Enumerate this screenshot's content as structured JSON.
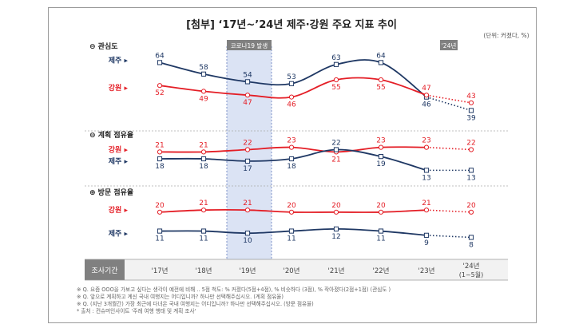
{
  "title": "[첨부] ‘17년~’24년 제주·강원 주요 지표 추이",
  "unit_note": "(단위: 커졌다, %)",
  "covid_label": "코로나19 발생",
  "future_badge": "'24년",
  "survey_label": "조사기간",
  "years": [
    "'17년",
    "'18년",
    "'19년",
    "'20년",
    "'21년",
    "'22년",
    "'23년",
    "'24년"
  ],
  "last_year_sub": "(1~5월)",
  "footnotes": [
    "※ Q. 요즘 OOO을 가보고 싶다는 생각이 예전에 비해 .. 5점 척도: % 커졌다(5점+4점), % 비슷하다 (3점), % 작아졌다(2점+1점) (관심도 )",
    "※ Q. 앞으로 계획하고 계신 국내 여행지는 어디입니까? 하나만 선택해주십시오. (계획 점유율)",
    "※ Q. (지난 3개월간) 가장 최근에 다녀온 국내 여행지는 어디입니까? 하나만 선택해주십시오. (방문 점유율)",
    "* 출처 : 컨슈머인사이트 '주례 여행 행태 및 계획 조사'"
  ],
  "colors": {
    "jeju": "#1f3864",
    "gangwon": "#e41e26",
    "highlight": "#dbe3f4"
  },
  "chart_data": {
    "type": "line",
    "title": "[첨부] ‘17년~’24년 제주·강원 주요 지표 추이",
    "x": [
      "'17년",
      "'18년",
      "'19년",
      "'20년",
      "'21년",
      "'22년",
      "'23년",
      "'24년"
    ],
    "note": "'24년 values are dotted (1~5월 partial year)",
    "panels": [
      {
        "name": "관심도",
        "ylim": [
          30,
          70
        ],
        "series": [
          {
            "name": "제주",
            "values": [
              64,
              58,
              54,
              53,
              63,
              64,
              46,
              39
            ]
          },
          {
            "name": "강원",
            "values": [
              52,
              49,
              47,
              46,
              55,
              55,
              47,
              43
            ]
          }
        ]
      },
      {
        "name": "계획 점유율",
        "ylim": [
          10,
          26
        ],
        "series": [
          {
            "name": "강원",
            "values": [
              21,
              21,
              22,
              23,
              21,
              23,
              23,
              22
            ]
          },
          {
            "name": "제주",
            "values": [
              18,
              18,
              17,
              18,
              22,
              19,
              13,
              13
            ]
          }
        ]
      },
      {
        "name": "방문 점유율",
        "ylim": [
          4,
          26
        ],
        "series": [
          {
            "name": "강원",
            "values": [
              20,
              21,
              21,
              20,
              20,
              20,
              21,
              20
            ]
          },
          {
            "name": "제주",
            "values": [
              11,
              11,
              10,
              11,
              12,
              11,
              9,
              8
            ]
          }
        ]
      }
    ]
  }
}
